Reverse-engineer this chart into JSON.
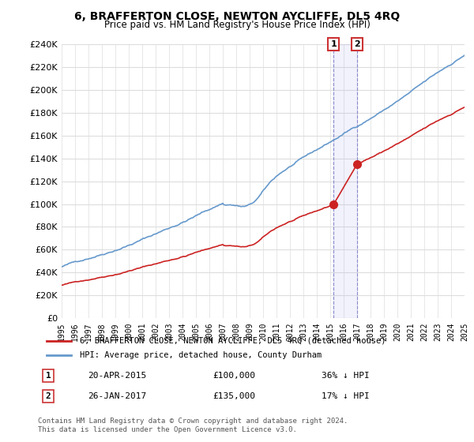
{
  "title": "6, BRAFFERTON CLOSE, NEWTON AYCLIFFE, DL5 4RQ",
  "subtitle": "Price paid vs. HM Land Registry's House Price Index (HPI)",
  "ylim": [
    0,
    240000
  ],
  "yticks": [
    0,
    20000,
    40000,
    60000,
    80000,
    100000,
    120000,
    140000,
    160000,
    180000,
    200000,
    220000,
    240000
  ],
  "hpi_color": "#6699cc",
  "price_color": "#cc2222",
  "sale1_date_idx": 20.3,
  "sale1_price": 100000,
  "sale1_label": "1",
  "sale2_date_idx": 22.1,
  "sale2_price": 135000,
  "sale2_label": "2",
  "legend_line1": "6, BRAFFERTON CLOSE, NEWTON AYCLIFFE, DL5 4RQ (detached house)",
  "legend_line2": "HPI: Average price, detached house, County Durham",
  "table_row1_num": "1",
  "table_row1_date": "20-APR-2015",
  "table_row1_price": "£100,000",
  "table_row1_hpi": "36% ↓ HPI",
  "table_row2_num": "2",
  "table_row2_date": "26-JAN-2017",
  "table_row2_price": "£135,000",
  "table_row2_hpi": "17% ↓ HPI",
  "footer": "Contains HM Land Registry data © Crown copyright and database right 2024.\nThis data is licensed under the Open Government Licence v3.0.",
  "bg_color": "#ffffff",
  "grid_color": "#dddddd"
}
